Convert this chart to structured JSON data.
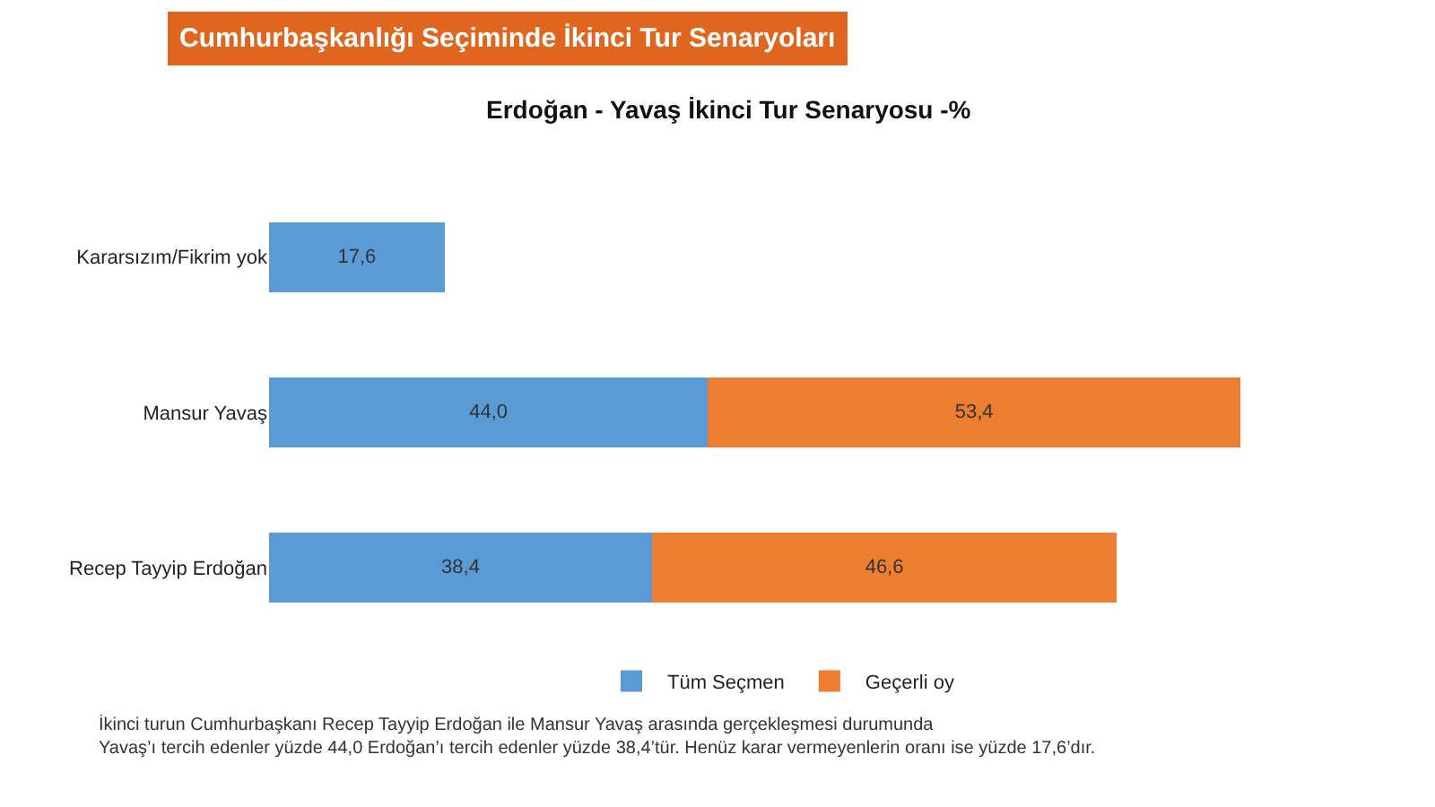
{
  "chart_data": {
    "type": "bar",
    "orientation": "horizontal",
    "stacked": true,
    "title": "Cumhurbaşkanlığı Seçiminde İkinci Tur Senaryoları",
    "subtitle": "Erdoğan - Yavaş İkinci Tur Senaryosu -%",
    "categories": [
      "Kararsızım/Fikrim yok",
      "Mansur Yavaş",
      "Recep Tayyip Erdoğan"
    ],
    "series": [
      {
        "name": "Tüm Seçmen",
        "color": "#5b9bd5",
        "values": [
          17.6,
          44.0,
          38.4
        ],
        "value_labels": [
          "17,6",
          "44,0",
          "38,4"
        ]
      },
      {
        "name": "Geçerli oy",
        "color": "#ed7d31",
        "values": [
          null,
          53.4,
          46.6
        ],
        "value_labels": [
          null,
          "53,4",
          "46,6"
        ]
      }
    ],
    "legend": "bottom",
    "annotations": [
      "İkinci turun Cumhurbaşkanı Recep Tayyip Erdoğan ile Mansur Yavaş arasında gerçekleşmesi durumunda\nYavaş’ı tercih edenler yüzde 44,0 Erdoğan’ı tercih edenler yüzde 38,4’tür. Henüz karar vermeyenlerin oranı ise yüzde 17,6’dır."
    ]
  }
}
